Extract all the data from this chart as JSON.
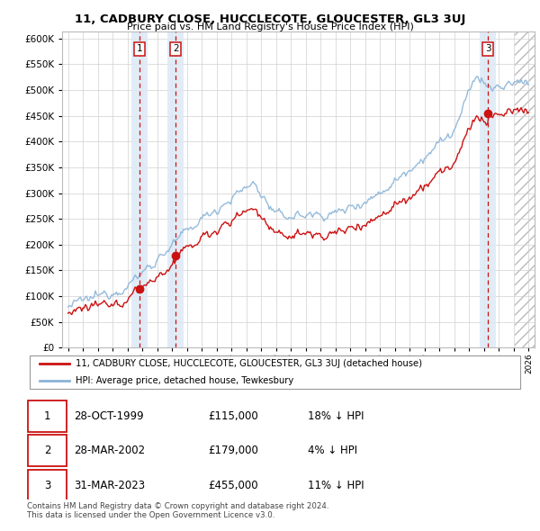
{
  "title": "11, CADBURY CLOSE, HUCCLECOTE, GLOUCESTER, GL3 3UJ",
  "subtitle": "Price paid vs. HM Land Registry's House Price Index (HPI)",
  "ylim": [
    0,
    612500
  ],
  "yticks": [
    0,
    50000,
    100000,
    150000,
    200000,
    250000,
    300000,
    350000,
    400000,
    450000,
    500000,
    550000,
    600000
  ],
  "xlim_start": 1994.6,
  "xlim_end": 2026.4,
  "hpi_color": "#8ab4d8",
  "price_color": "#cc1111",
  "sale_points": [
    {
      "year": 1999.83,
      "price": 115000,
      "label": "1"
    },
    {
      "year": 2002.24,
      "price": 179000,
      "label": "2"
    },
    {
      "year": 2023.25,
      "price": 455000,
      "label": "3"
    }
  ],
  "legend_label_price": "11, CADBURY CLOSE, HUCCLECOTE, GLOUCESTER, GL3 3UJ (detached house)",
  "legend_label_hpi": "HPI: Average price, detached house, Tewkesbury",
  "table_rows": [
    {
      "num": "1",
      "date": "28-OCT-1999",
      "price": "£115,000",
      "note": "18% ↓ HPI"
    },
    {
      "num": "2",
      "date": "28-MAR-2002",
      "price": "£179,000",
      "note": "4% ↓ HPI"
    },
    {
      "num": "3",
      "date": "31-MAR-2023",
      "price": "£455,000",
      "note": "11% ↓ HPI"
    }
  ],
  "footer": "Contains HM Land Registry data © Crown copyright and database right 2024.\nThis data is licensed under the Open Government Licence v3.0.",
  "vline_color": "#cc1111",
  "shade_color": "#dce9f5",
  "hatch_color": "#cccccc"
}
